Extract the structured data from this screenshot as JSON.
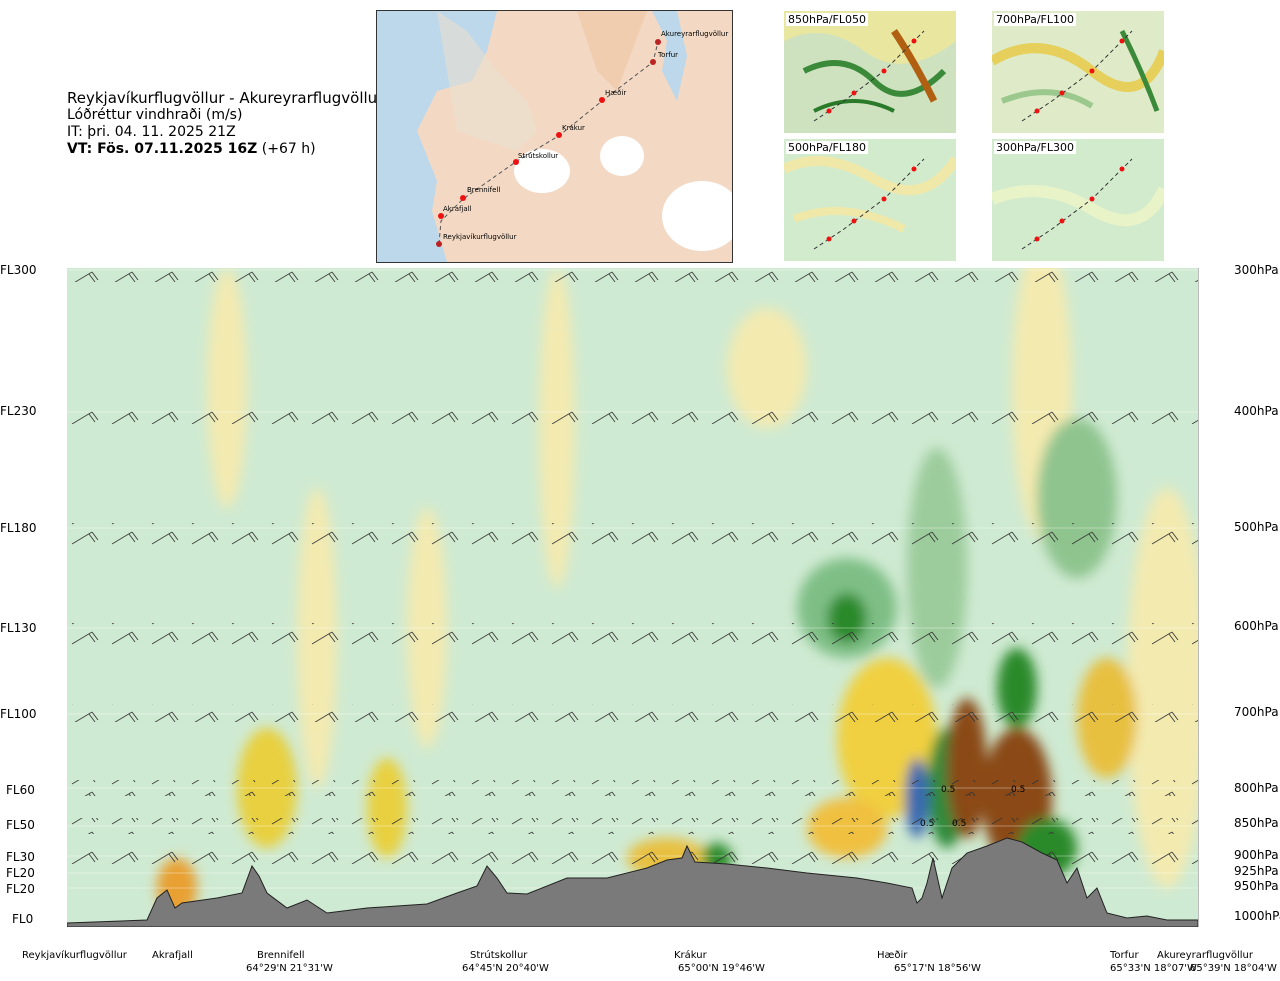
{
  "header": {
    "route": "Reykjavíkurflugvöllur - Akureyrarflugvöllur",
    "param": "Lóðréttur vindhraði (m/s)",
    "it": "IT: þri. 04. 11. 2025 21Z",
    "vt_bold": "VT: Fös. 07.11.2025 16Z",
    "vt_offset": "(+67 h)"
  },
  "map": {
    "points": [
      "Akureyrarflugvöllur",
      "Torfur",
      "Hæðir",
      "Krákur",
      "Strútskollur",
      "Brennifell",
      "Akrafjall",
      "Reykjavíkurflugvöllur"
    ]
  },
  "thumbnails": [
    "850hPa/FL050",
    "700hPa/FL100",
    "500hPa/FL180",
    "300hPa/FL300"
  ],
  "levels": {
    "fl": [
      "FL300",
      "FL230",
      "FL180",
      "FL130",
      "FL100",
      "FL60",
      "FL50",
      "FL30",
      "FL20",
      "FL20",
      "FL0"
    ],
    "hpa": [
      "300hPa",
      "400hPa",
      "500hPa",
      "600hPa",
      "700hPa",
      "800hPa",
      "850hPa",
      "900hPa",
      "925hPa",
      "950hPa",
      "1000hPa"
    ]
  },
  "contour_labels": [
    "0.5",
    "0.5",
    "0.5",
    "0.5"
  ],
  "waypoints": [
    {
      "name": "Reykjavíkurflugvöllur",
      "coord": ""
    },
    {
      "name": "Akrafjall",
      "coord": ""
    },
    {
      "name": "Brennifell",
      "coord": "64°29'N 21°31'W"
    },
    {
      "name": "Strútskollur",
      "coord": "64°45'N 20°40'W"
    },
    {
      "name": "Krákur",
      "coord": "65°00'N 19°46'W"
    },
    {
      "name": "Hæðir",
      "coord": "65°17'N 18°56'W"
    },
    {
      "name": "Torfur",
      "coord": "65°33'N 18°07'W"
    },
    {
      "name": "Akureyrarflugvöllur",
      "coord": "65°39'N 18°04'W"
    }
  ],
  "colors": {
    "bg": "#cfead2",
    "yellow": "#f3eab0",
    "green": "#7fbf86",
    "brown": "#8a4a16",
    "terrain": "#7a7a7a"
  }
}
